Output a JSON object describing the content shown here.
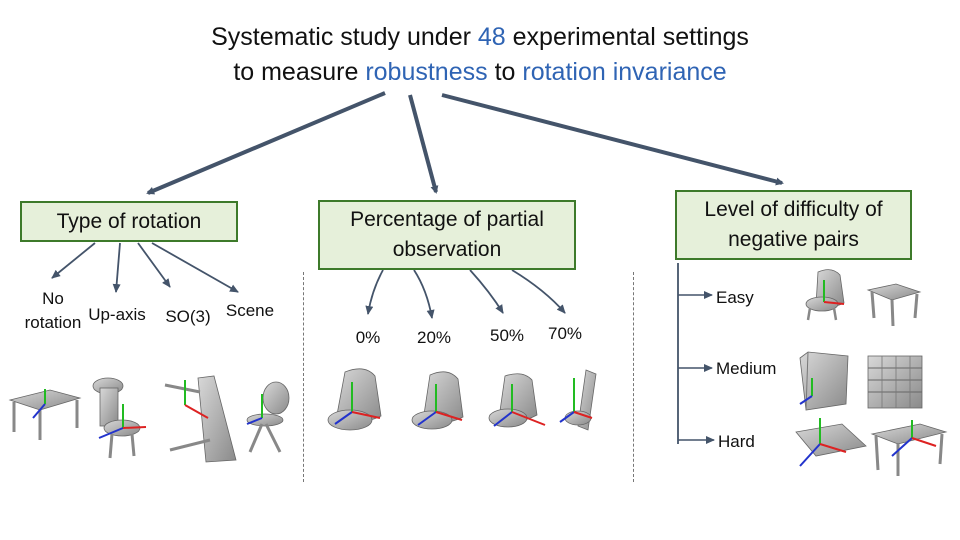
{
  "title": {
    "line1_pre": "Systematic study under ",
    "line1_num": "48",
    "line1_post": " experimental settings",
    "line2_pre": "to measure ",
    "line2_hl1": "robustness",
    "line2_mid": " to ",
    "line2_hl2": "rotation invariance"
  },
  "colors": {
    "accent": "#2f64b4",
    "box_fill": "#e6f0da",
    "box_border": "#3d7a2a",
    "arrow": "#44546a"
  },
  "categories": [
    {
      "label": "Type of rotation",
      "items": [
        {
          "line1": "No",
          "line2": "rotation"
        },
        {
          "line1": "Up-axis"
        },
        {
          "line1": "SO(3)"
        },
        {
          "line1": "Scene"
        }
      ]
    },
    {
      "label_line1": "Percentage of partial",
      "label_line2": "observation",
      "items": [
        "0%",
        "20%",
        "50%",
        "70%"
      ]
    },
    {
      "label_line1": "Level of difficulty of",
      "label_line2": "negative pairs",
      "items": [
        "Easy",
        "Medium",
        "Hard"
      ]
    }
  ],
  "icons": [
    "table-icon",
    "chair-icon",
    "rotated-table-icon",
    "scene-chair-icon",
    "armchair-icon",
    "cabinet-icon",
    "shelf-icon"
  ]
}
